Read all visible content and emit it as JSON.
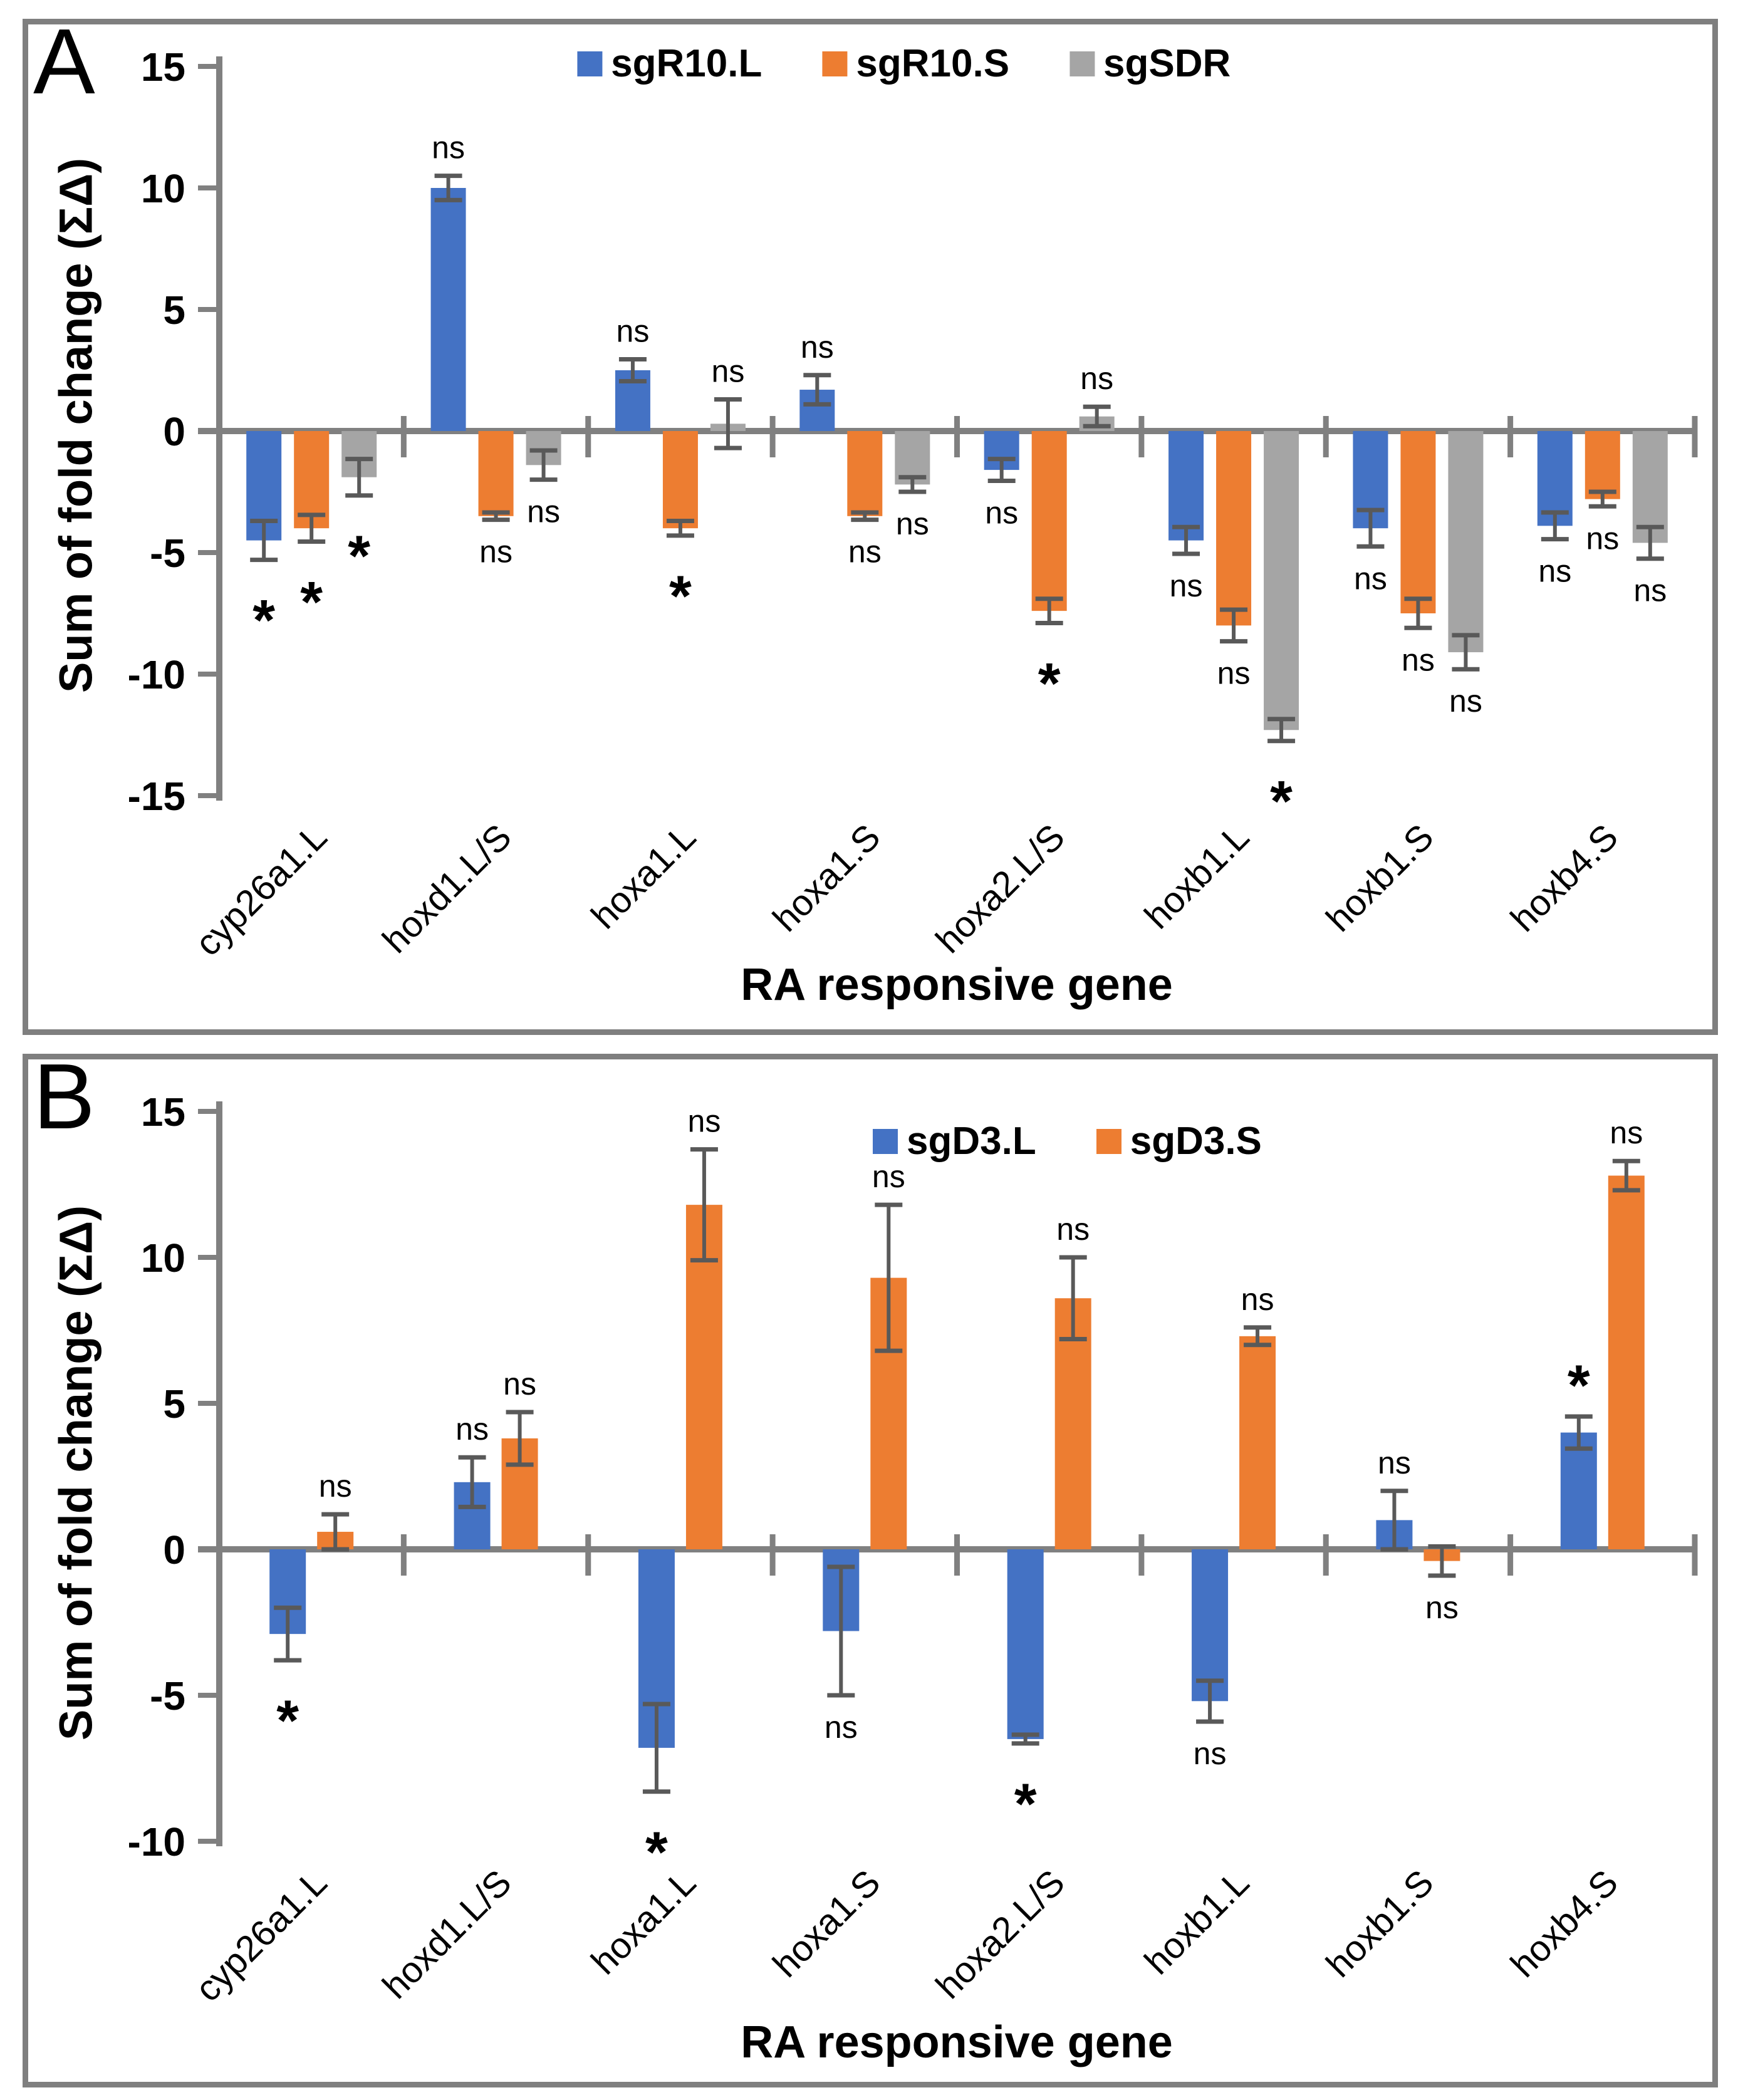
{
  "figure": {
    "background": "#ffffff",
    "panel_border_color": "#7f7f7f"
  },
  "colors": {
    "axis": "#808080",
    "error_bar": "#595959",
    "text": "#000000",
    "series_blue": "#4472C4",
    "series_orange": "#ED7D31",
    "series_gray": "#A5A5A5"
  },
  "chart_data": [
    {
      "panel_label": "A",
      "type": "bar",
      "title": "",
      "xlabel": "RA responsive gene",
      "ylabel": "Sum of fold change (ΣΔ)",
      "ylim": [
        -15,
        15
      ],
      "yticks": [
        15,
        10,
        5,
        0,
        -5,
        -10,
        -15
      ],
      "grid": false,
      "legend_position": "top-center",
      "categories": [
        "cyp26a1.L",
        "hoxd1.L/S",
        "hoxa1.L",
        "hoxa1.S",
        "hoxa2.L/S",
        "hoxb1.L",
        "hoxb1.S",
        "hoxb4.S"
      ],
      "series": [
        {
          "name": "sgR10.L",
          "color": "#4472C4",
          "values": [
            -4.5,
            10.0,
            2.5,
            1.7,
            -1.6,
            -4.5,
            -4.0,
            -3.9
          ],
          "errors": [
            0.8,
            0.5,
            0.45,
            0.6,
            0.45,
            0.55,
            0.75,
            0.55
          ],
          "sig": [
            "*",
            "ns",
            "ns",
            "ns",
            "ns",
            "ns",
            "ns",
            "ns"
          ]
        },
        {
          "name": "sgR10.S",
          "color": "#ED7D31",
          "values": [
            -4.0,
            -3.5,
            -4.0,
            -3.5,
            -7.4,
            -8.0,
            -7.5,
            -2.8
          ],
          "errors": [
            0.55,
            0.15,
            0.3,
            0.15,
            0.5,
            0.65,
            0.6,
            0.3
          ],
          "sig": [
            "*",
            "ns",
            "*",
            "ns",
            "*",
            "ns",
            "ns",
            "ns"
          ]
        },
        {
          "name": "sgSDR",
          "color": "#A5A5A5",
          "values": [
            -1.9,
            -1.4,
            0.3,
            -2.2,
            0.6,
            -12.3,
            -9.1,
            -4.6
          ],
          "errors": [
            0.75,
            0.6,
            1.0,
            0.3,
            0.4,
            0.45,
            0.7,
            0.65
          ],
          "sig": [
            "*",
            "ns",
            "ns",
            "ns",
            "ns",
            "*",
            "ns",
            "ns"
          ]
        }
      ]
    },
    {
      "panel_label": "B",
      "type": "bar",
      "title": "",
      "xlabel": "RA responsive gene",
      "ylabel": "Sum of fold change (ΣΔ)",
      "ylim": [
        -10,
        15
      ],
      "yticks": [
        15,
        10,
        5,
        0,
        -5,
        -10
      ],
      "grid": false,
      "legend_position": "top-right",
      "categories": [
        "cyp26a1.L",
        "hoxd1.L/S",
        "hoxa1.L",
        "hoxa1.S",
        "hoxa2.L/S",
        "hoxb1.L",
        "hoxb1.S",
        "hoxb4.S"
      ],
      "series": [
        {
          "name": "sgD3.L",
          "color": "#4472C4",
          "values": [
            -2.9,
            2.3,
            -6.8,
            -2.8,
            -6.5,
            -5.2,
            1.0,
            4.0
          ],
          "errors": [
            0.9,
            0.85,
            1.5,
            2.2,
            0.15,
            0.7,
            1.0,
            0.55
          ],
          "sig": [
            "*",
            "ns",
            "*",
            "ns",
            "*",
            "ns",
            "ns",
            "*"
          ]
        },
        {
          "name": "sgD3.S",
          "color": "#ED7D31",
          "values": [
            0.6,
            3.8,
            11.8,
            9.3,
            8.6,
            7.3,
            -0.4,
            12.8
          ],
          "errors": [
            0.6,
            0.9,
            1.9,
            2.5,
            1.4,
            0.3,
            0.5,
            0.5
          ],
          "sig": [
            "ns",
            "ns",
            "ns",
            "ns",
            "ns",
            "ns",
            "ns",
            "ns"
          ]
        }
      ]
    }
  ]
}
